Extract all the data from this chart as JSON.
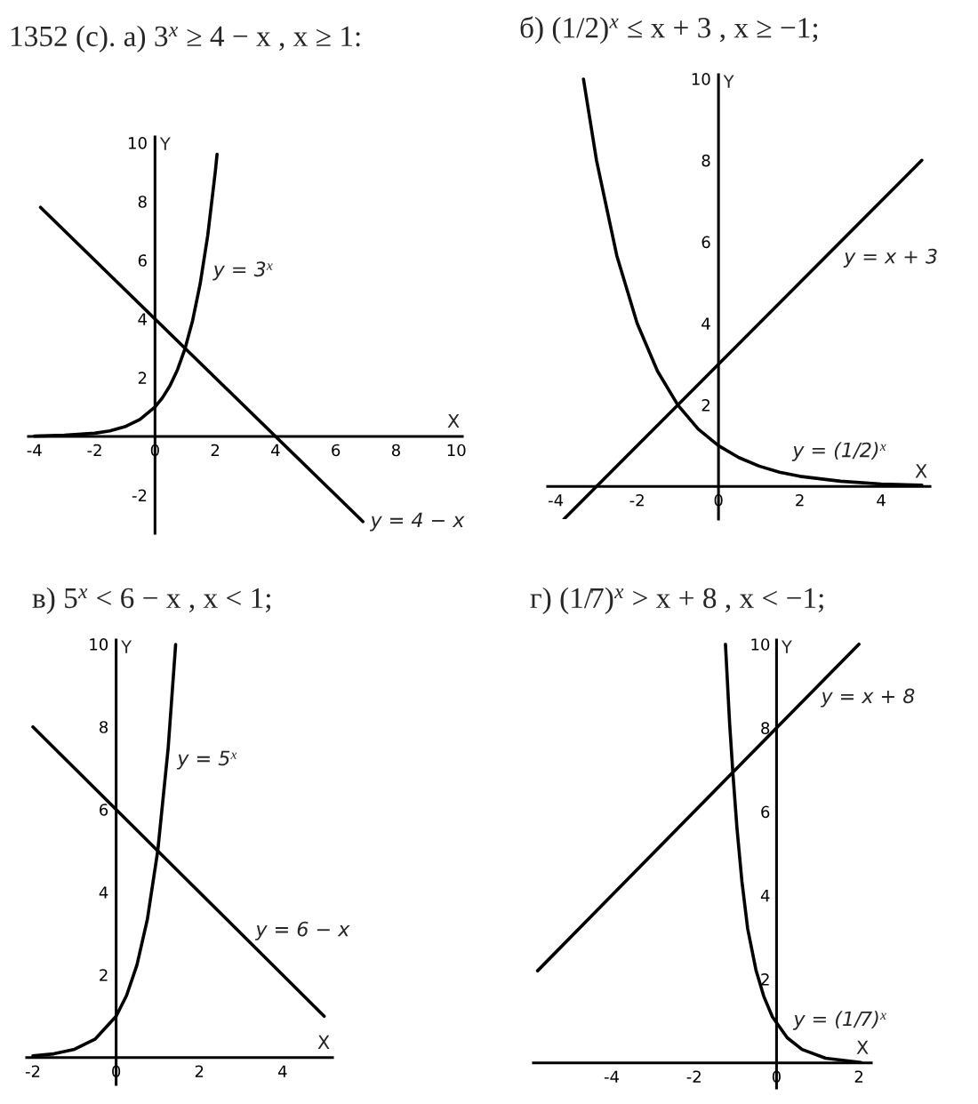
{
  "chart_data": [
    {
      "type": "line",
      "title": "1352 (с). а) 3$^{x}$ ≥ 4 − x , x ≥ 1:",
      "xlabel": "X",
      "ylabel": "Y",
      "xlim": [
        -4.2,
        10.2
      ],
      "ylim": [
        -3.3,
        10.2
      ],
      "xticks": [
        -4,
        -2,
        0,
        2,
        4,
        6,
        8,
        10
      ],
      "yticks": [
        -2,
        2,
        4,
        6,
        8,
        10
      ],
      "series": [
        {
          "color": "#000000",
          "x": [
            -4,
            -3,
            -2,
            -1.5,
            -1,
            -0.5,
            0,
            0.25,
            0.5,
            0.75,
            1,
            1.25,
            1.5,
            1.75,
            2,
            2.06
          ],
          "values": [
            0.01,
            0.04,
            0.11,
            0.19,
            0.33,
            0.58,
            1,
            1.32,
            1.73,
            2.28,
            3,
            3.95,
            5.2,
            6.84,
            9,
            9.61
          ]
        },
        {
          "color": "#000000",
          "x": [
            -3.8,
            6.9
          ],
          "values": [
            7.8,
            -2.9
          ]
        }
      ],
      "annotations": [
        {
          "text": "y = 3$^{x}$",
          "x": 1.6,
          "y": 5.8
        },
        {
          "text": "y = 4 − x",
          "x": 6.9,
          "y": -2.9
        }
      ]
    },
    {
      "type": "line",
      "title": "б) (1/2)$^{x}$ ≤ x + 3 , x ≥ −1;",
      "xlabel": "X",
      "ylabel": "Y",
      "xlim": [
        -4.2,
        5.2
      ],
      "ylim": [
        -0.8,
        10.1
      ],
      "xticks": [
        -4,
        -2,
        0,
        2,
        4
      ],
      "yticks": [
        2,
        4,
        6,
        8,
        10
      ],
      "series": [
        {
          "color": "#000000",
          "x": [
            -3.32,
            -3,
            -2.5,
            -2,
            -1.5,
            -1,
            -0.5,
            0,
            0.5,
            1,
            1.5,
            2,
            3,
            4,
            5
          ],
          "values": [
            9.99,
            8,
            5.66,
            4,
            2.83,
            2,
            1.41,
            1,
            0.71,
            0.5,
            0.35,
            0.25,
            0.13,
            0.06,
            0.03
          ]
        },
        {
          "color": "#000000",
          "x": [
            -3.8,
            5
          ],
          "values": [
            -0.8,
            8
          ]
        }
      ],
      "annotations": [
        {
          "text": "y = x + 3",
          "x": 2.9,
          "y": 5.9
        },
        {
          "text": "y = (1/2)$^{x}$",
          "x": 2.0,
          "y": 0.25
        }
      ]
    },
    {
      "type": "line",
      "title": "в) 5$^{x}$ < 6 − x , x < 1;",
      "xlabel": "X",
      "ylabel": "Y",
      "xlim": [
        -2.15,
        5.2
      ],
      "ylim": [
        -0.65,
        10.1
      ],
      "xticks": [
        -2,
        0,
        2,
        4
      ],
      "yticks": [
        2,
        4,
        6,
        8,
        10
      ],
      "series": [
        {
          "color": "#000000",
          "x": [
            -2,
            -1.5,
            -1,
            -0.5,
            0,
            0.25,
            0.5,
            0.75,
            1,
            1.25,
            1.43
          ],
          "values": [
            0.04,
            0.09,
            0.2,
            0.45,
            1,
            1.5,
            2.24,
            3.34,
            5,
            7.48,
            9.99
          ]
        },
        {
          "color": "#000000",
          "x": [
            -2,
            5
          ],
          "values": [
            8,
            1
          ]
        }
      ],
      "annotations": [
        {
          "text": "y = 5$^{x}$",
          "x": 1.23,
          "y": 7.2
        },
        {
          "text": "y = 6 − x",
          "x": 3.35,
          "y": 2.65
        }
      ]
    },
    {
      "type": "line",
      "title": "г) (1/7)$^{x}$ > x + 8 , x < −1;",
      "xlabel": "X",
      "ylabel": "Y",
      "xlim": [
        -5.9,
        2.3
      ],
      "ylim": [
        -0.6,
        10.1
      ],
      "xticks": [
        -4,
        -2,
        0,
        2
      ],
      "yticks": [
        2,
        4,
        6,
        8,
        10
      ],
      "series": [
        {
          "color": "#000000",
          "x": [
            -1.24,
            -1.14,
            -1.06,
            -0.96,
            -0.84,
            -0.7,
            -0.5,
            -0.31,
            -0.1,
            0,
            0.26,
            0.62,
            1.19,
            2.05
          ],
          "values": [
            10,
            8.13,
            6.93,
            5.6,
            4.33,
            3.2,
            2.22,
            1.59,
            1.1,
            0.96,
            0.6,
            0.32,
            0.11,
            0.01
          ]
        },
        {
          "color": "#000000",
          "x": [
            -5.8,
            2
          ],
          "values": [
            2.2,
            10
          ]
        }
      ],
      "annotations": [
        {
          "text": "y = x + 8",
          "x": 0.9,
          "y": 8.9
        },
        {
          "text": "y = (1/7)$^{x}$",
          "x": 0.26,
          "y": 0.6
        }
      ]
    }
  ]
}
